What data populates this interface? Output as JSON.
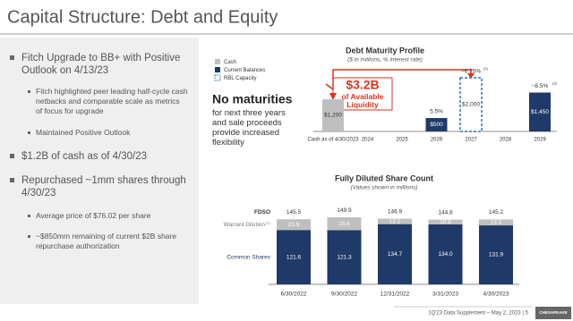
{
  "slide": {
    "title": "Capital Structure: Debt and Equity",
    "bullets": [
      {
        "text": "Fitch Upgrade to BB+ with Positive Outlook on 4/13/23",
        "subs": [
          "Fitch highlighted peer leading half-cycle cash netbacks and comparable scale as metrics of focus for upgrade",
          "Maintained Positive Outlook"
        ]
      },
      {
        "text": "$1.2B of cash as of 4/30/23",
        "subs": []
      },
      {
        "text": "Repurchased ~1mm shares through 4/30/23",
        "subs": [
          "Average price of $76.02 per share",
          "~$850mm remaining of current $2B share repurchase authorization"
        ]
      }
    ],
    "callout_big": "$3.2B",
    "callout_text": "of Available Liquidity",
    "note_bold": "No maturities",
    "note_text": "for next three years and sale proceeds provide increased flexibility",
    "footer": "1Q'23 Data Supplement – May 2, 2023  |  5",
    "logo": "CHESAPEAKE"
  },
  "chart_data": [
    {
      "type": "bar",
      "title": "Debt Maturity Profile",
      "subtitle": "($ in millions, % interest rate)",
      "categories": [
        "Cash as of 4/30/2023",
        "2024",
        "2025",
        "2026",
        "2027",
        "2028",
        "2029"
      ],
      "series": [
        {
          "name": "Cash",
          "color": "#bfbfbf",
          "values": [
            1200,
            null,
            null,
            null,
            null,
            null,
            null
          ],
          "value_labels": [
            "$1,200",
            null,
            null,
            null,
            null,
            null,
            null
          ]
        },
        {
          "name": "Current Balances",
          "color": "#1f3a68",
          "values": [
            null,
            null,
            null,
            500,
            null,
            null,
            1450
          ],
          "value_labels": [
            null,
            null,
            null,
            "$500",
            null,
            null,
            "$1,450"
          ]
        },
        {
          "name": "RBL Capacity",
          "color": "#2e75b6",
          "dashed": true,
          "values": [
            null,
            null,
            null,
            null,
            2000,
            null,
            null
          ],
          "value_labels": [
            null,
            null,
            null,
            null,
            "$2,000",
            null,
            null
          ]
        }
      ],
      "rate_labels": [
        null,
        null,
        null,
        "5.5%",
        "~6.75%",
        null,
        "~6.5%"
      ],
      "rate_notes": [
        null,
        null,
        null,
        null,
        "(2)",
        null,
        "(3)"
      ]
    },
    {
      "type": "stacked_bar",
      "title": "Fully Diluted Share Count",
      "subtitle": "(Values shown in millions)",
      "categories": [
        "6/30/2022",
        "9/30/2022",
        "12/31/2022",
        "3/31/2023",
        "4/30/2023"
      ],
      "series": [
        {
          "name": "Common Shares",
          "color": "#1f3a68",
          "values": [
            121.6,
            121.3,
            134.7,
            134.0,
            131.9
          ],
          "value_labels": [
            "121.6",
            "121.3",
            "134.7",
            "134.0",
            "131.9"
          ]
        },
        {
          "name": "Warrant Dilution",
          "name_note": "(1)",
          "color": "#bfbfbf",
          "values": [
            23.9,
            28.6,
            12.2,
            10.8,
            13.3
          ]
        }
      ],
      "totals": {
        "name": "FDSO",
        "values": [
          145.5,
          149.9,
          146.9,
          144.8,
          145.2
        ]
      }
    }
  ]
}
